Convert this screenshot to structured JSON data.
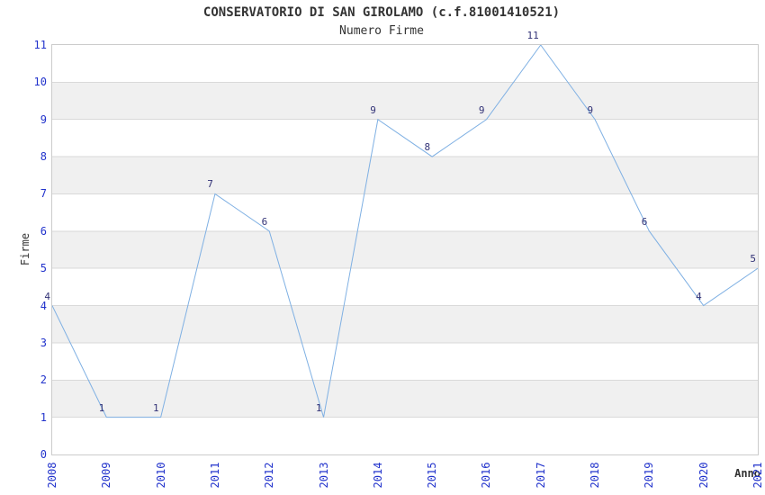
{
  "chart_data": {
    "type": "line",
    "title": "CONSERVATORIO DI SAN GIROLAMO (c.f.81001410521)",
    "subtitle": "Numero Firme",
    "xlabel": "Anno",
    "ylabel": "Firme",
    "categories": [
      "2008",
      "2009",
      "2010",
      "2011",
      "2012",
      "2013",
      "2014",
      "2015",
      "2016",
      "2017",
      "2018",
      "2019",
      "2020",
      "2021"
    ],
    "series": [
      {
        "name": "Numero Firme",
        "values": [
          4,
          1,
          1,
          7,
          6,
          1,
          9,
          8,
          9,
          11,
          9,
          6,
          4,
          5
        ]
      }
    ],
    "ylim": [
      0,
      11
    ],
    "yticks": [
      0,
      1,
      2,
      3,
      4,
      5,
      6,
      7,
      8,
      9,
      10,
      11
    ],
    "grid": "horizontal",
    "legend": "none",
    "stripe_bands": [
      [
        1,
        2
      ],
      [
        3,
        4
      ],
      [
        5,
        6
      ],
      [
        7,
        8
      ],
      [
        9,
        10
      ]
    ],
    "data_labels": [
      "4",
      "1",
      "1",
      "7",
      "6",
      "1",
      "9",
      "8",
      "9",
      "11",
      "9",
      "6",
      "4",
      "5"
    ],
    "colors": {
      "line": "#7fb0e3",
      "tick_label": "#2233cc",
      "data_label": "#333377",
      "text": "#333333",
      "stripe": "#f0f0f0",
      "gridline": "#d9d9d9",
      "frame": "#cccccc",
      "background": "#ffffff"
    }
  }
}
